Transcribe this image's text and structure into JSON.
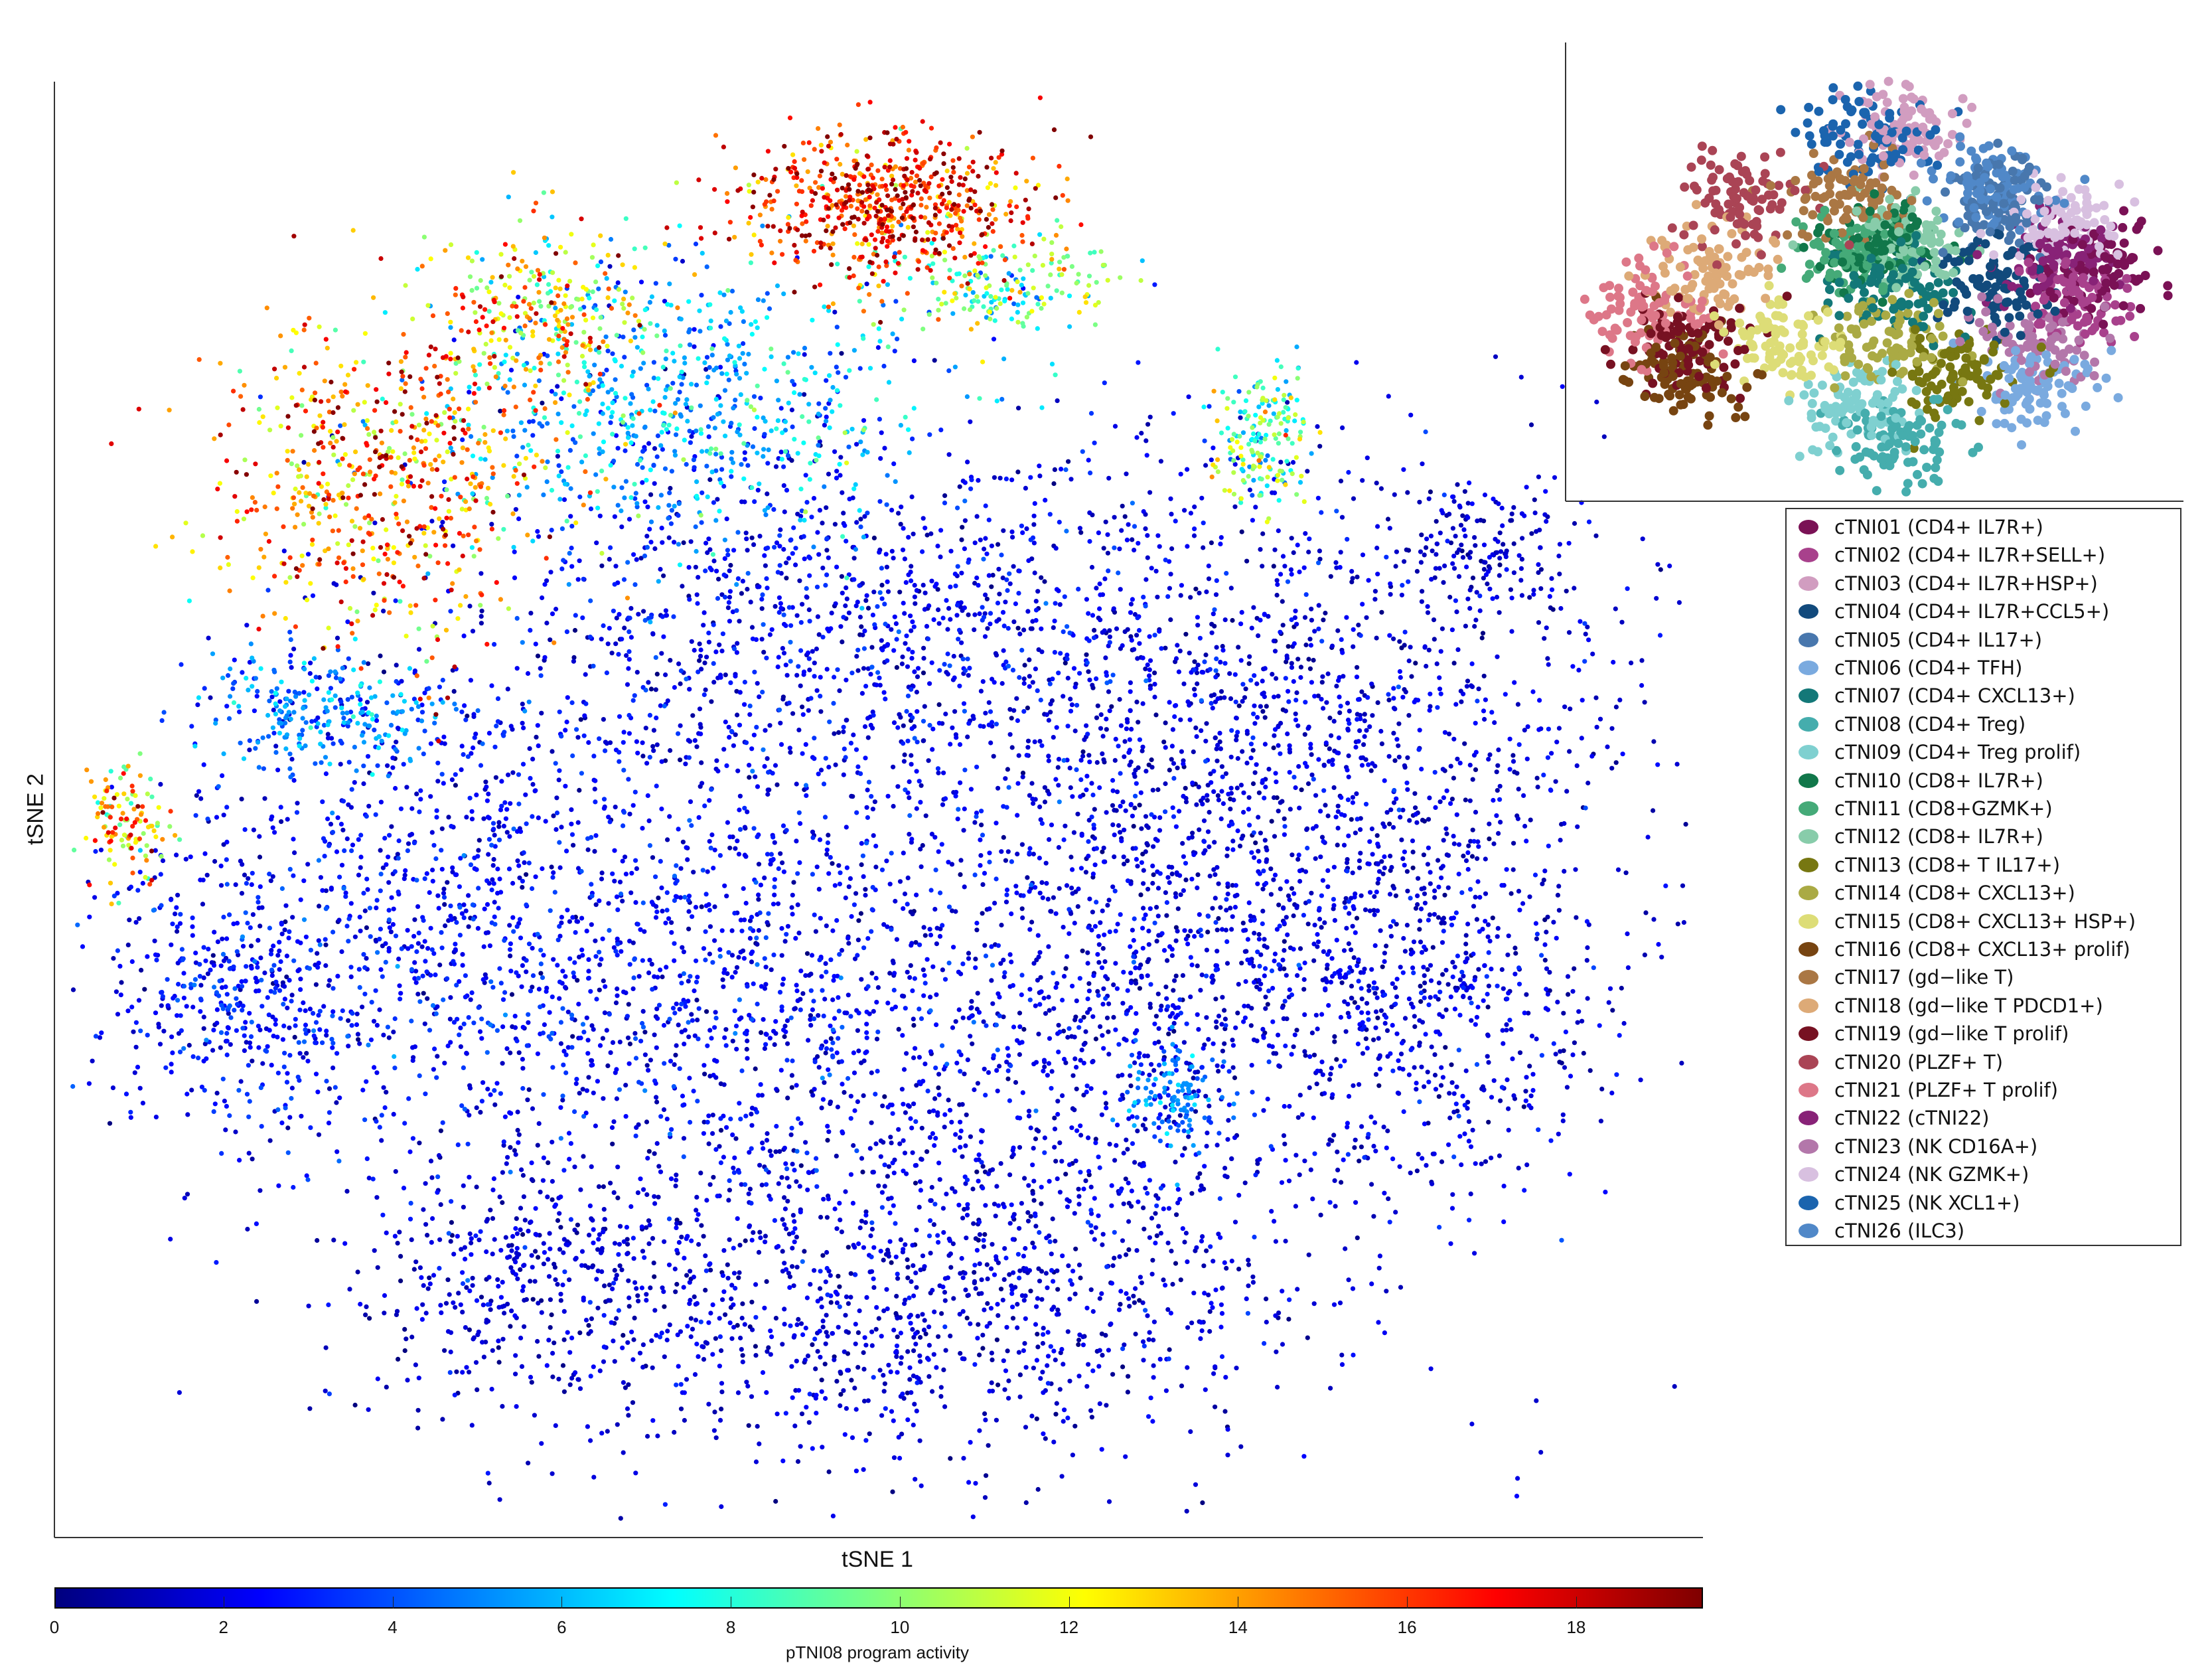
{
  "chart_data": {
    "type": "scatter",
    "title": "",
    "xlabel": "tSNE 1",
    "ylabel": "tSNE 2",
    "xlim": [
      0,
      100
    ],
    "ylim": [
      0,
      100
    ],
    "grid": false,
    "colorbar": {
      "label": "pTNI08 program activity",
      "colormap": "jet",
      "range": [
        0,
        19.5
      ],
      "ticks": [
        0,
        2,
        4,
        6,
        8,
        10,
        12,
        14,
        16,
        18
      ],
      "tick_labels": [
        "0",
        "2",
        "4",
        "6",
        "8",
        "10",
        "12",
        "14",
        "16",
        "18"
      ]
    },
    "clusters": [
      {
        "cx": 50.4,
        "cy": 91.5,
        "sx": 4.6,
        "sy": 2.6,
        "n": 650,
        "activity": 16.5,
        "sd": 2.5
      },
      {
        "cx": 58,
        "cy": 86,
        "sx": 3.5,
        "sy": 1.8,
        "n": 180,
        "activity": 9,
        "sd": 2.5
      },
      {
        "cx": 20,
        "cy": 73,
        "sx": 5,
        "sy": 6,
        "n": 650,
        "activity": 14.5,
        "sd": 3
      },
      {
        "cx": 29.6,
        "cy": 84,
        "sx": 3,
        "sy": 3,
        "n": 250,
        "activity": 13,
        "sd": 3
      },
      {
        "cx": 73.3,
        "cy": 75.5,
        "sx": 1.4,
        "sy": 2.4,
        "n": 180,
        "activity": 9,
        "sd": 2.5
      },
      {
        "cx": 4.5,
        "cy": 49,
        "sx": 1.2,
        "sy": 2.2,
        "n": 120,
        "activity": 13,
        "sd": 3
      },
      {
        "cx": 38,
        "cy": 78,
        "sx": 7,
        "sy": 5,
        "n": 700,
        "activity": 5.5,
        "sd": 2
      },
      {
        "cx": 16.6,
        "cy": 56.6,
        "sx": 3.5,
        "sy": 2,
        "n": 250,
        "activity": 5,
        "sd": 1.5
      },
      {
        "cx": 48.7,
        "cy": 62,
        "sx": 13,
        "sy": 7,
        "n": 1300,
        "activity": 2.2,
        "sd": 1
      },
      {
        "cx": 75,
        "cy": 55,
        "sx": 11,
        "sy": 9,
        "n": 1300,
        "activity": 1.6,
        "sd": 0.8
      },
      {
        "cx": 23,
        "cy": 42,
        "sx": 9,
        "sy": 9,
        "n": 1100,
        "activity": 2.4,
        "sd": 1
      },
      {
        "cx": 53,
        "cy": 17,
        "sx": 12,
        "sy": 7,
        "n": 1200,
        "activity": 1.6,
        "sd": 0.8
      },
      {
        "cx": 29.6,
        "cy": 17,
        "sx": 6,
        "sy": 4.5,
        "n": 400,
        "activity": 1.5,
        "sd": 0.7
      },
      {
        "cx": 83.3,
        "cy": 37,
        "sx": 6,
        "sy": 7,
        "n": 600,
        "activity": 1.7,
        "sd": 0.8
      },
      {
        "cx": 44,
        "cy": 37,
        "sx": 9,
        "sy": 8,
        "n": 900,
        "activity": 2.2,
        "sd": 1
      },
      {
        "cx": 10.6,
        "cy": 38,
        "sx": 3.5,
        "sy": 4.5,
        "n": 300,
        "activity": 2.6,
        "sd": 1
      },
      {
        "cx": 87,
        "cy": 68,
        "sx": 2.5,
        "sy": 2.5,
        "n": 150,
        "activity": 1.4,
        "sd": 0.6
      },
      {
        "cx": 66,
        "cy": 37,
        "sx": 7,
        "sy": 8,
        "n": 700,
        "activity": 1.8,
        "sd": 0.8
      },
      {
        "cx": 68.1,
        "cy": 30,
        "sx": 1.4,
        "sy": 1.8,
        "n": 120,
        "activity": 5,
        "sd": 1
      }
    ],
    "inset": {
      "type": "scatter",
      "color_by": "cluster",
      "legend_entries": [
        {
          "label": "cTNI01 (CD4+ IL7R+)",
          "color": "#7a1155",
          "cx": 86.1,
          "cy": 50.2
        },
        {
          "label": "cTNI02 (CD4+ IL7R+SELL+)",
          "color": "#a8418c",
          "cx": 83.8,
          "cy": 43.9
        },
        {
          "label": "cTNI03 (CD4+ IL7R+HSP+)",
          "color": "#d19dc0",
          "cx": 53.8,
          "cy": 81.3
        },
        {
          "label": "cTNI04 (CD4+ IL7R+CCL5+)",
          "color": "#124a7c",
          "cx": 70,
          "cy": 47
        },
        {
          "label": "cTNI05 (CD4+ IL17+)",
          "color": "#4877ad",
          "cx": 70,
          "cy": 65.7
        },
        {
          "label": "cTNI06 (CD4+ TFH)",
          "color": "#7aaadf",
          "cx": 74.6,
          "cy": 25.2
        },
        {
          "label": "cTNI07 (CD4+ CXCL13+)",
          "color": "#137878",
          "cx": 53.8,
          "cy": 47
        },
        {
          "label": "cTNI08 (CD4+ Treg)",
          "color": "#45adad",
          "cx": 53.8,
          "cy": 12.8
        },
        {
          "label": "cTNI09 (CD4+ Treg prolif)",
          "color": "#7fd0d0",
          "cx": 46.9,
          "cy": 19
        },
        {
          "label": "cTNI10 (CD8+ IL7R+)",
          "color": "#11774a",
          "cx": 51.5,
          "cy": 56.4
        },
        {
          "label": "cTNI11 (CD8+GZMK+)",
          "color": "#45aa78",
          "cx": 46.9,
          "cy": 53.3
        },
        {
          "label": "cTNI12 (CD8+ IL7R+)",
          "color": "#88ccaa",
          "cx": 56.1,
          "cy": 56.4
        },
        {
          "label": "cTNI13 (CD8+ T IL17+)",
          "color": "#777711",
          "cx": 63,
          "cy": 28
        },
        {
          "label": "cTNI14 (CD8+ CXCL13+)",
          "color": "#aaaa44",
          "cx": 51.5,
          "cy": 34.6
        },
        {
          "label": "cTNI15 (CD8+ CXCL13+ HSP+)",
          "color": "#dddd77",
          "cx": 35.3,
          "cy": 34.6
        },
        {
          "label": "cTNI16 (CD8+ CXCL13+ prolif)",
          "color": "#774411",
          "cx": 19.2,
          "cy": 28.3
        },
        {
          "label": "cTNI17 (gd−like T)",
          "color": "#aa7744",
          "cx": 44.6,
          "cy": 65.7
        },
        {
          "label": "cTNI18 (gd−like T PDCD1+)",
          "color": "#ddaa77",
          "cx": 23.8,
          "cy": 50.2
        },
        {
          "label": "cTNI19 (gd−like T prolif)",
          "color": "#771122",
          "cx": 20.3,
          "cy": 34.6
        },
        {
          "label": "cTNI20 (PLZF+ T)",
          "color": "#aa4455",
          "cx": 28.4,
          "cy": 65.7
        },
        {
          "label": "cTNI21 (PLZF+ T prolif)",
          "color": "#dd7788",
          "cx": 12.2,
          "cy": 40.8
        },
        {
          "label": "cTNI22 (cTNI22)",
          "color": "#882277",
          "cx": 79.2,
          "cy": 53.3
        },
        {
          "label": "cTNI23 (NK CD16A+)",
          "color": "#b377aa",
          "cx": 76.9,
          "cy": 34.6
        },
        {
          "label": "cTNI24 (NK GZMK+)",
          "color": "#d8c0e0",
          "cx": 80.4,
          "cy": 61
        },
        {
          "label": "cTNI25 (NK XCL1+)",
          "color": "#1b64ae",
          "cx": 49.2,
          "cy": 79.8
        },
        {
          "label": "cTNI26 (ILC3)",
          "color": "#5088c8",
          "cx": 70,
          "cy": 68.8
        }
      ]
    }
  }
}
